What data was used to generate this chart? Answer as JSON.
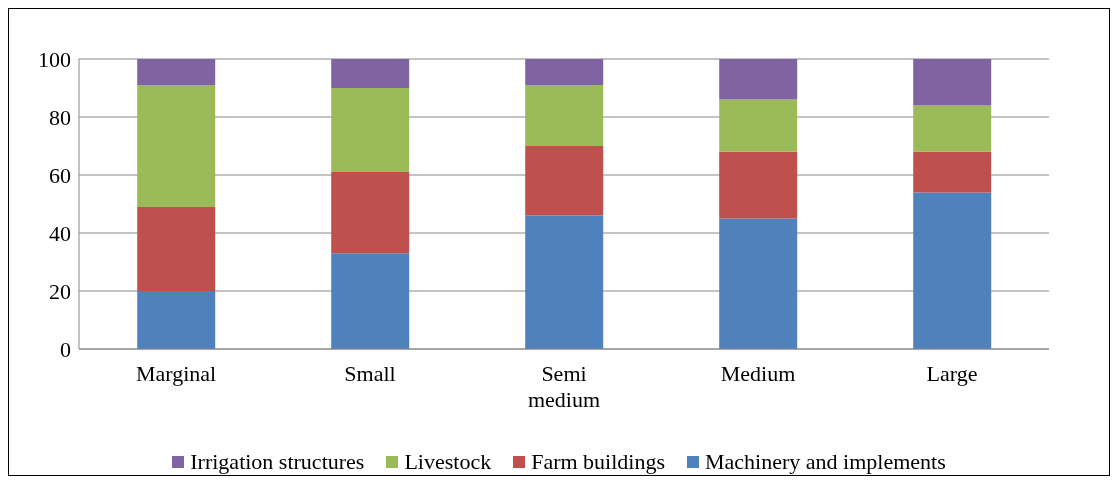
{
  "chart_data": {
    "type": "bar",
    "stacked": true,
    "categories": [
      "Marginal",
      "Small",
      "Semi medium",
      "Medium",
      "Large"
    ],
    "series": [
      {
        "name": "Machinery and implements",
        "color": "#4f81bd",
        "values": [
          20,
          33,
          46,
          45,
          54
        ]
      },
      {
        "name": "Farm buildings",
        "color": "#c0504d",
        "values": [
          29,
          28,
          24,
          23,
          14
        ]
      },
      {
        "name": "Livestock",
        "color": "#9bbb59",
        "values": [
          42,
          29,
          21,
          18,
          16
        ]
      },
      {
        "name": "Irrigation structures",
        "color": "#8064a2",
        "values": [
          9,
          10,
          9,
          14,
          16
        ]
      }
    ],
    "ylim": [
      0,
      100
    ],
    "yticks": [
      0,
      20,
      40,
      60,
      80,
      100
    ],
    "grid": "y",
    "legend": "bottom"
  }
}
